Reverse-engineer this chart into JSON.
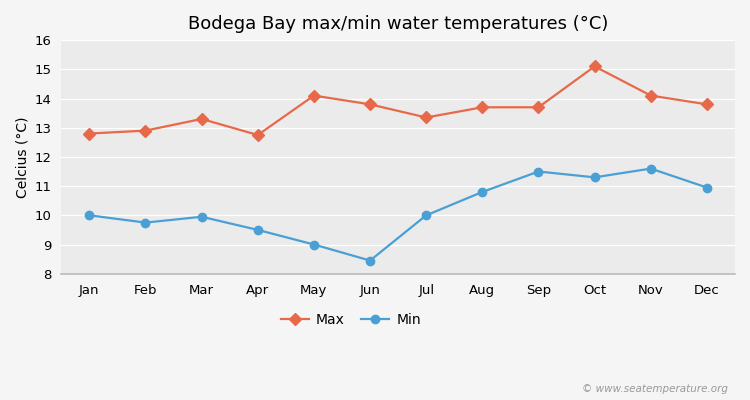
{
  "title": "Bodega Bay max/min water temperatures (°C)",
  "ylabel": "Celcius (°C)",
  "months": [
    "Jan",
    "Feb",
    "Mar",
    "Apr",
    "May",
    "Jun",
    "Jul",
    "Aug",
    "Sep",
    "Oct",
    "Nov",
    "Dec"
  ],
  "max_temps": [
    12.8,
    12.9,
    13.3,
    12.75,
    14.1,
    13.8,
    13.35,
    13.7,
    13.7,
    15.1,
    14.1,
    13.8
  ],
  "min_temps": [
    10.0,
    9.75,
    9.95,
    9.5,
    9.0,
    8.45,
    10.0,
    10.8,
    11.5,
    11.3,
    11.6,
    10.95
  ],
  "max_color": "#e8694a",
  "min_color": "#4a9fd4",
  "background_color": "#f5f5f5",
  "plot_bg_color": "#ebebeb",
  "grid_color": "#ffffff",
  "ylim": [
    8,
    16
  ],
  "yticks": [
    8,
    9,
    10,
    11,
    12,
    13,
    14,
    15,
    16
  ],
  "legend_labels": [
    "Max",
    "Min"
  ],
  "watermark": "© www.seatemperature.org",
  "title_fontsize": 13,
  "axis_fontsize": 10,
  "tick_fontsize": 9.5,
  "max_marker": "D",
  "min_marker": "o",
  "marker_size": 6,
  "line_width": 1.6
}
